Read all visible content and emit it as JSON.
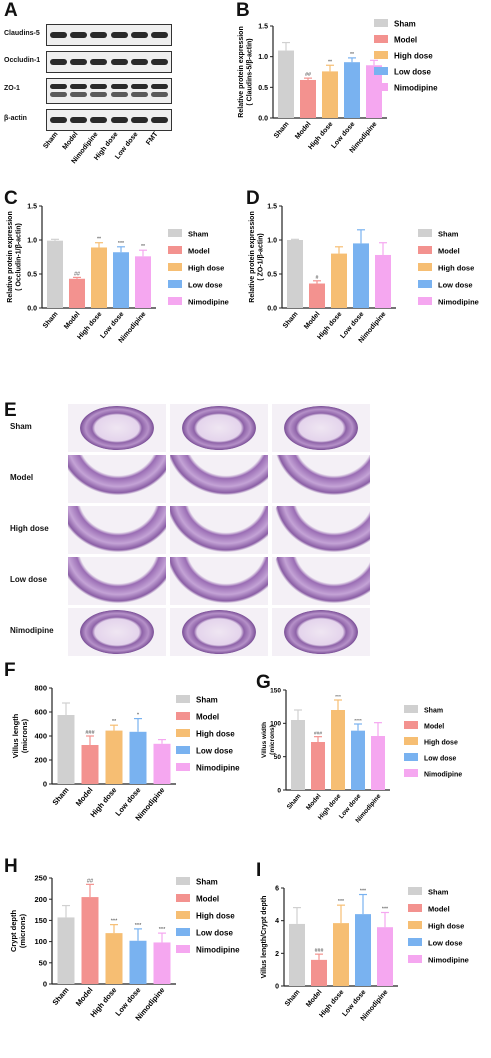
{
  "panel_letters": [
    "A",
    "B",
    "C",
    "D",
    "E",
    "F",
    "G",
    "H",
    "I"
  ],
  "legend": [
    {
      "name": "Sham",
      "color": "#d0d0d0"
    },
    {
      "name": "Model",
      "color": "#f3928f"
    },
    {
      "name": "High dose",
      "color": "#f6be73"
    },
    {
      "name": "Low dose",
      "color": "#79b2f0"
    },
    {
      "name": "Nimodipine",
      "color": "#f5a7f0"
    }
  ],
  "western_blot": {
    "proteins": [
      "Claudins-5",
      "Occludin-1",
      "ZO-1",
      "β-actin"
    ],
    "lanes": [
      "Sham",
      "Model",
      "Nimodipine",
      "High dose",
      "Low dose",
      "FMT"
    ]
  },
  "histology": {
    "rows": [
      "Sham",
      "Model",
      "High dose",
      "Low dose",
      "Nimodipine"
    ]
  },
  "chart_data": [
    {
      "panel": "B",
      "type": "bar",
      "categories": [
        "Sham",
        "Model",
        "High dose",
        "Low dose",
        "Nimodipine"
      ],
      "values": [
        1.1,
        0.62,
        0.76,
        0.91,
        0.86
      ],
      "errors": [
        0.13,
        0.03,
        0.1,
        0.07,
        0.08
      ],
      "annotations": [
        "",
        "##",
        "**",
        "**",
        ""
      ],
      "ylabel": "Relative protein expression\n( Claudins-5/β-actin)",
      "ylim": [
        0,
        1.5
      ],
      "yticks": [
        "0.0",
        "0.5",
        "1.0",
        "1.5"
      ]
    },
    {
      "panel": "C",
      "type": "bar",
      "categories": [
        "Sham",
        "Model",
        "High dose",
        "Low dose",
        "Nimodipine"
      ],
      "values": [
        0.99,
        0.43,
        0.89,
        0.82,
        0.76
      ],
      "errors": [
        0.02,
        0.02,
        0.07,
        0.08,
        0.09
      ],
      "annotations": [
        "",
        "##",
        "**",
        "***",
        "**"
      ],
      "ylabel": "Relative protein expression\n( Occludin-1/β-actin)",
      "ylim": [
        0,
        1.5
      ],
      "yticks": [
        "0.0",
        "0.5",
        "1.0",
        "1.5"
      ]
    },
    {
      "panel": "D",
      "type": "bar",
      "categories": [
        "Sham",
        "Model",
        "High dose",
        "Low dose",
        "Nimodipine"
      ],
      "values": [
        1.0,
        0.36,
        0.8,
        0.95,
        0.78
      ],
      "errors": [
        0.01,
        0.04,
        0.1,
        0.2,
        0.18
      ],
      "annotations": [
        "",
        "#",
        "",
        "",
        ""
      ],
      "ylabel": "Relative protein expression\n( ZO-1/β-actin)",
      "ylim": [
        0,
        1.5
      ],
      "yticks": [
        "0.0",
        "0.5",
        "1.0",
        "1.5"
      ]
    },
    {
      "panel": "F",
      "type": "bar",
      "categories": [
        "Sham",
        "Model",
        "High dose",
        "Low dose",
        "Nimodipine"
      ],
      "values": [
        575,
        325,
        445,
        435,
        335
      ],
      "errors": [
        100,
        75,
        45,
        110,
        35
      ],
      "annotations": [
        "",
        "###",
        "**",
        "*",
        ""
      ],
      "ylabel": "Villus length\n(microns)",
      "ylim": [
        0,
        800
      ],
      "yticks": [
        "0",
        "200",
        "400",
        "600",
        "800"
      ]
    },
    {
      "panel": "G",
      "type": "bar",
      "categories": [
        "Sham",
        "Model",
        "High dose",
        "Low dose",
        "Nimodipine"
      ],
      "values": [
        105,
        72,
        120,
        89,
        81
      ],
      "errors": [
        15,
        8,
        15,
        10,
        20
      ],
      "annotations": [
        "",
        "###",
        "***",
        "****",
        ""
      ],
      "ylabel": "Villus width\n(microns)",
      "ylim": [
        0,
        150
      ],
      "yticks": [
        "0",
        "50",
        "100",
        "150"
      ]
    },
    {
      "panel": "H",
      "type": "bar",
      "categories": [
        "Sham",
        "Model",
        "High dose",
        "Low dose",
        "Nimodipine"
      ],
      "values": [
        157,
        205,
        120,
        102,
        98
      ],
      "errors": [
        28,
        30,
        20,
        28,
        22
      ],
      "annotations": [
        "",
        "##",
        "***",
        "***",
        "***"
      ],
      "ylabel": "Crypt depth\n(microns)",
      "ylim": [
        0,
        250
      ],
      "yticks": [
        "0",
        "50",
        "100",
        "150",
        "200",
        "250"
      ]
    },
    {
      "panel": "I",
      "type": "bar",
      "categories": [
        "Sham",
        "Model",
        "High dose",
        "Low dose",
        "Nimodipine"
      ],
      "values": [
        3.8,
        1.6,
        3.85,
        4.4,
        3.6
      ],
      "errors": [
        1.0,
        0.35,
        1.1,
        1.2,
        0.9
      ],
      "annotations": [
        "",
        "###",
        "***",
        "***",
        "***"
      ],
      "ylabel": "Villus length/Crypt depth",
      "ylim": [
        0,
        6
      ],
      "yticks": [
        "0",
        "2",
        "4",
        "6"
      ]
    }
  ]
}
